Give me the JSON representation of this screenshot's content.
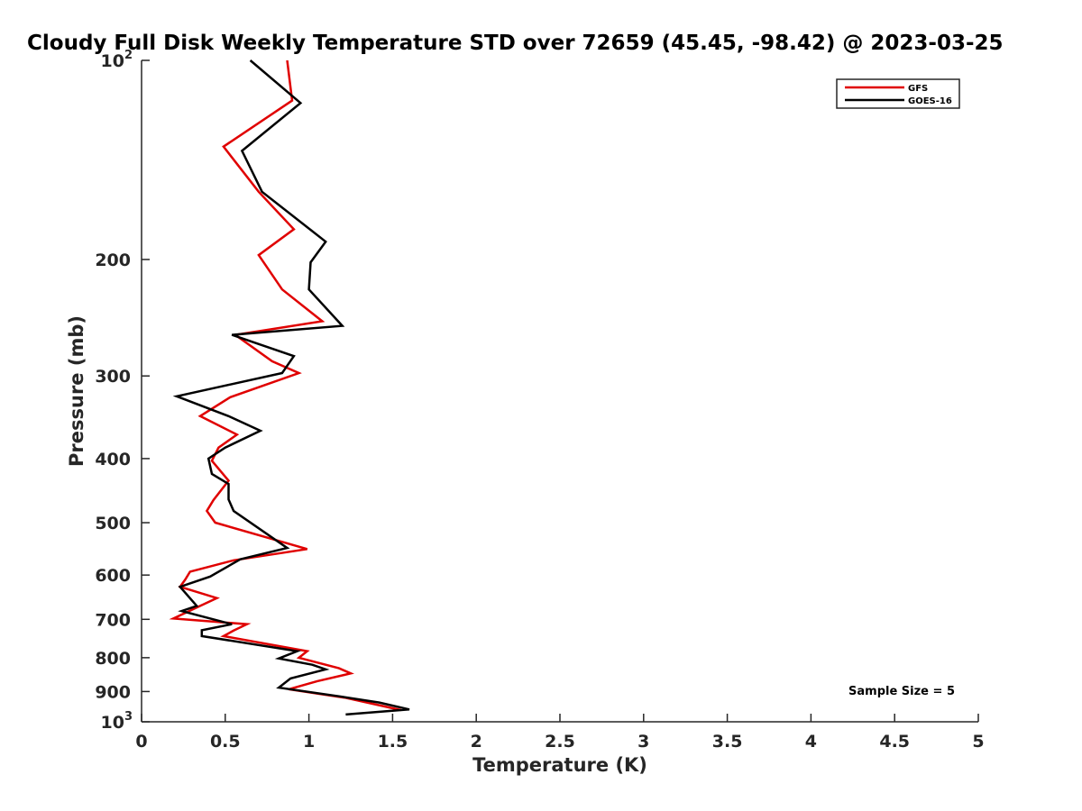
{
  "chart_data": {
    "type": "line",
    "title": "Cloudy Full Disk Weekly Temperature STD over 72659 (45.45, -98.42) @ 2023-03-25",
    "xlabel": "Temperature (K)",
    "ylabel": "Pressure (mb)",
    "xlim": [
      0,
      5
    ],
    "ylim": [
      100,
      1000
    ],
    "y_scale": "log",
    "y_reversed": true,
    "x_ticks": [
      "0",
      "0.5",
      "1",
      "1.5",
      "2",
      "2.5",
      "3",
      "3.5",
      "4",
      "4.5",
      "5"
    ],
    "y_ticks": [
      {
        "value": 100,
        "label": "10",
        "exponent": "2"
      },
      {
        "value": 200,
        "label": "200"
      },
      {
        "value": 300,
        "label": "300"
      },
      {
        "value": 400,
        "label": "400"
      },
      {
        "value": 500,
        "label": "500"
      },
      {
        "value": 600,
        "label": "600"
      },
      {
        "value": 700,
        "label": "700"
      },
      {
        "value": 800,
        "label": "800"
      },
      {
        "value": 900,
        "label": "900"
      },
      {
        "value": 1000,
        "label": "10",
        "exponent": "3"
      }
    ],
    "grid": false,
    "legend_position": "top-right",
    "annotation": "Sample Size = 5",
    "series": [
      {
        "name": "GFS",
        "color": "#e00000",
        "points": [
          [
            0.87,
            100
          ],
          [
            0.9,
            115
          ],
          [
            0.49,
            135
          ],
          [
            0.7,
            158
          ],
          [
            0.91,
            180
          ],
          [
            0.7,
            197
          ],
          [
            0.84,
            222
          ],
          [
            1.08,
            248
          ],
          [
            0.56,
            260
          ],
          [
            0.78,
            285
          ],
          [
            0.94,
            297
          ],
          [
            0.53,
            323
          ],
          [
            0.35,
            345
          ],
          [
            0.57,
            368
          ],
          [
            0.46,
            385
          ],
          [
            0.42,
            403
          ],
          [
            0.52,
            432
          ],
          [
            0.43,
            462
          ],
          [
            0.39,
            480
          ],
          [
            0.44,
            500
          ],
          [
            0.99,
            548
          ],
          [
            0.55,
            570
          ],
          [
            0.29,
            593
          ],
          [
            0.26,
            610
          ],
          [
            0.23,
            625
          ],
          [
            0.45,
            650
          ],
          [
            0.35,
            668
          ],
          [
            0.19,
            698
          ],
          [
            0.63,
            712
          ],
          [
            0.55,
            728
          ],
          [
            0.49,
            742
          ],
          [
            0.99,
            782
          ],
          [
            0.94,
            800
          ],
          [
            1.18,
            830
          ],
          [
            1.25,
            845
          ],
          [
            1.05,
            868
          ],
          [
            0.88,
            893
          ],
          [
            1.22,
            920
          ],
          [
            1.55,
            960
          ]
        ]
      },
      {
        "name": "GOES-16",
        "color": "#000000",
        "points": [
          [
            0.65,
            100
          ],
          [
            0.95,
            116
          ],
          [
            0.6,
            137
          ],
          [
            0.72,
            158
          ],
          [
            1.1,
            188
          ],
          [
            1.01,
            202
          ],
          [
            1.0,
            222
          ],
          [
            1.2,
            252
          ],
          [
            0.54,
            260
          ],
          [
            0.91,
            280
          ],
          [
            0.84,
            297
          ],
          [
            0.21,
            322
          ],
          [
            0.52,
            345
          ],
          [
            0.71,
            363
          ],
          [
            0.5,
            385
          ],
          [
            0.4,
            400
          ],
          [
            0.42,
            422
          ],
          [
            0.52,
            437
          ],
          [
            0.52,
            461
          ],
          [
            0.55,
            480
          ],
          [
            0.87,
            546
          ],
          [
            0.59,
            568
          ],
          [
            0.41,
            603
          ],
          [
            0.23,
            625
          ],
          [
            0.33,
            668
          ],
          [
            0.24,
            680
          ],
          [
            0.54,
            712
          ],
          [
            0.36,
            727
          ],
          [
            0.36,
            742
          ],
          [
            0.93,
            782
          ],
          [
            0.82,
            802
          ],
          [
            1.02,
            820
          ],
          [
            1.1,
            833
          ],
          [
            0.89,
            860
          ],
          [
            0.82,
            888
          ],
          [
            1.18,
            915
          ],
          [
            1.42,
            935
          ],
          [
            1.6,
            958
          ],
          [
            1.22,
            975
          ]
        ]
      }
    ]
  }
}
